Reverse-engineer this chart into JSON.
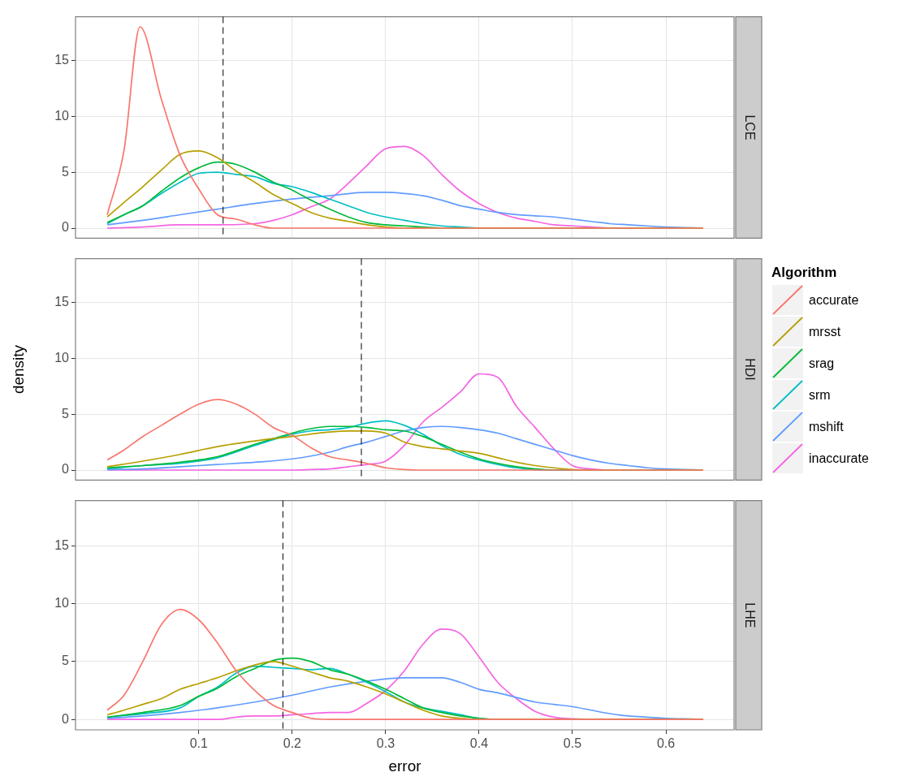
{
  "chart_data": [
    {
      "type": "line",
      "annotations": [
        "LCE"
      ],
      "xlim": [
        -0.032,
        0.673
      ],
      "ylim": [
        -0.9,
        18.9
      ],
      "xticks": [
        0.1,
        0.2,
        0.3,
        0.4,
        0.5,
        0.6
      ],
      "yticks": [
        0,
        5,
        10,
        15
      ],
      "grid": true,
      "tick_labels": "y",
      "legend": false,
      "ref_lines": [
        {
          "axis": "x",
          "value": 0.126,
          "color": "#000000",
          "line_style": "dashed"
        }
      ],
      "series": [
        {
          "color": "#f8766d",
          "x": [
            0.002,
            0.02,
            0.037,
            0.06,
            0.08,
            0.1,
            0.12,
            0.14,
            0.16,
            0.18,
            0.64
          ],
          "values": [
            1.2,
            7,
            18,
            11.5,
            6.5,
            3.5,
            1.2,
            0.8,
            0.3,
            0,
            0
          ]
        },
        {
          "color": "#b79f00",
          "x": [
            0.002,
            0.02,
            0.04,
            0.06,
            0.08,
            0.1,
            0.12,
            0.14,
            0.16,
            0.18,
            0.2,
            0.22,
            0.24,
            0.26,
            0.28,
            0.3,
            0.32,
            0.64
          ],
          "values": [
            1.0,
            2.3,
            3.7,
            5.2,
            6.6,
            6.9,
            6.3,
            5.1,
            4.1,
            3.0,
            2.2,
            1.4,
            0.9,
            0.6,
            0.3,
            0.1,
            0,
            0
          ]
        },
        {
          "color": "#00ba38",
          "x": [
            0.002,
            0.02,
            0.04,
            0.06,
            0.08,
            0.1,
            0.12,
            0.14,
            0.16,
            0.18,
            0.2,
            0.22,
            0.24,
            0.26,
            0.28,
            0.3,
            0.32,
            0.34,
            0.36,
            0.64
          ],
          "values": [
            0.5,
            1.2,
            2.0,
            3.3,
            4.5,
            5.4,
            5.9,
            5.7,
            5.0,
            4.1,
            3.4,
            2.5,
            1.7,
            1.0,
            0.5,
            0.3,
            0.2,
            0.1,
            0,
            0
          ]
        },
        {
          "color": "#00bfc4",
          "x": [
            0.002,
            0.02,
            0.04,
            0.06,
            0.08,
            0.1,
            0.12,
            0.14,
            0.16,
            0.18,
            0.2,
            0.22,
            0.24,
            0.26,
            0.28,
            0.3,
            0.32,
            0.34,
            0.36,
            0.38,
            0.4,
            0.64
          ],
          "values": [
            0.4,
            1.2,
            2.0,
            3.1,
            4.1,
            4.9,
            5.0,
            4.8,
            4.6,
            4.0,
            3.7,
            3.2,
            2.6,
            2.0,
            1.4,
            1.0,
            0.7,
            0.4,
            0.2,
            0.1,
            0,
            0
          ]
        },
        {
          "color": "#619cff",
          "x": [
            0.002,
            0.04,
            0.08,
            0.12,
            0.16,
            0.2,
            0.24,
            0.28,
            0.3,
            0.32,
            0.34,
            0.36,
            0.38,
            0.4,
            0.42,
            0.44,
            0.46,
            0.48,
            0.5,
            0.52,
            0.54,
            0.56,
            0.58,
            0.6,
            0.62,
            0.64
          ],
          "values": [
            0.3,
            0.7,
            1.2,
            1.7,
            2.2,
            2.6,
            2.9,
            3.2,
            3.2,
            3.1,
            2.9,
            2.5,
            2.0,
            1.7,
            1.4,
            1.2,
            1.1,
            1.0,
            0.8,
            0.6,
            0.4,
            0.3,
            0.2,
            0.1,
            0.05,
            0
          ]
        },
        {
          "color": "#f564e3",
          "x": [
            0.002,
            0.04,
            0.08,
            0.12,
            0.16,
            0.18,
            0.2,
            0.22,
            0.24,
            0.26,
            0.28,
            0.3,
            0.32,
            0.34,
            0.36,
            0.38,
            0.4,
            0.42,
            0.44,
            0.46,
            0.48,
            0.5,
            0.52,
            0.54,
            0.64
          ],
          "values": [
            0,
            0.1,
            0.3,
            0.3,
            0.4,
            0.7,
            1.2,
            1.9,
            2.6,
            4.0,
            5.6,
            7.1,
            7.3,
            6.5,
            4.8,
            3.3,
            2.2,
            1.4,
            0.9,
            0.6,
            0.3,
            0.2,
            0.1,
            0,
            0
          ]
        }
      ]
    },
    {
      "type": "line",
      "annotations": [
        "HDI"
      ],
      "ylabel": "density",
      "xlim": [
        -0.032,
        0.673
      ],
      "ylim": [
        -0.9,
        18.9
      ],
      "xticks": [
        0.1,
        0.2,
        0.3,
        0.4,
        0.5,
        0.6
      ],
      "yticks": [
        0,
        5,
        10,
        15
      ],
      "grid": true,
      "tick_labels": "y",
      "legend": "right",
      "legend_title": "Algorithm",
      "ref_lines": [
        {
          "axis": "x",
          "value": 0.274,
          "color": "#000000",
          "line_style": "dashed"
        }
      ],
      "series": [
        {
          "name": "accurate",
          "color": "#f8766d",
          "x": [
            0.002,
            0.02,
            0.04,
            0.06,
            0.08,
            0.1,
            0.12,
            0.14,
            0.16,
            0.18,
            0.2,
            0.22,
            0.24,
            0.26,
            0.28,
            0.3,
            0.32,
            0.34,
            0.64
          ],
          "values": [
            0.9,
            1.8,
            3.0,
            4.0,
            5.0,
            5.9,
            6.3,
            5.9,
            5.0,
            3.8,
            3.1,
            2.0,
            1.2,
            0.9,
            0.6,
            0.2,
            0.05,
            0,
            0
          ]
        },
        {
          "name": "mrsst",
          "color": "#b79f00",
          "x": [
            0.002,
            0.04,
            0.08,
            0.12,
            0.16,
            0.2,
            0.24,
            0.26,
            0.28,
            0.3,
            0.32,
            0.34,
            0.36,
            0.38,
            0.4,
            0.42,
            0.44,
            0.46,
            0.48,
            0.5,
            0.52,
            0.64
          ],
          "values": [
            0.3,
            0.8,
            1.4,
            2.1,
            2.6,
            3.0,
            3.4,
            3.5,
            3.5,
            3.3,
            2.5,
            2.1,
            1.9,
            1.7,
            1.5,
            1.1,
            0.7,
            0.4,
            0.2,
            0.05,
            0,
            0
          ]
        },
        {
          "name": "srag",
          "color": "#00ba38",
          "x": [
            0.002,
            0.04,
            0.08,
            0.12,
            0.16,
            0.2,
            0.22,
            0.24,
            0.26,
            0.28,
            0.3,
            0.32,
            0.34,
            0.36,
            0.38,
            0.4,
            0.42,
            0.44,
            0.46,
            0.48,
            0.64
          ],
          "values": [
            0.2,
            0.4,
            0.7,
            1.2,
            2.3,
            3.3,
            3.7,
            3.9,
            3.9,
            3.8,
            3.6,
            3.5,
            3.0,
            2.3,
            1.6,
            1.0,
            0.6,
            0.3,
            0.1,
            0,
            0
          ]
        },
        {
          "name": "srm",
          "color": "#00bfc4",
          "x": [
            0.002,
            0.04,
            0.08,
            0.12,
            0.16,
            0.2,
            0.22,
            0.24,
            0.26,
            0.28,
            0.3,
            0.32,
            0.34,
            0.36,
            0.38,
            0.4,
            0.42,
            0.44,
            0.46,
            0.48,
            0.64
          ],
          "values": [
            0.1,
            0.4,
            0.6,
            1.1,
            2.2,
            3.2,
            3.5,
            3.6,
            3.8,
            4.2,
            4.4,
            4.0,
            3.2,
            2.2,
            1.4,
            0.9,
            0.5,
            0.2,
            0.05,
            0,
            0
          ]
        },
        {
          "name": "mshift",
          "color": "#619cff",
          "x": [
            0.002,
            0.04,
            0.08,
            0.12,
            0.16,
            0.2,
            0.24,
            0.26,
            0.28,
            0.3,
            0.32,
            0.34,
            0.36,
            0.38,
            0.4,
            0.42,
            0.44,
            0.46,
            0.48,
            0.5,
            0.52,
            0.54,
            0.56,
            0.58,
            0.6,
            0.62,
            0.64
          ],
          "values": [
            0.05,
            0.1,
            0.3,
            0.5,
            0.7,
            1.0,
            1.6,
            2.1,
            2.5,
            3.0,
            3.5,
            3.8,
            3.9,
            3.8,
            3.6,
            3.3,
            2.8,
            2.3,
            1.8,
            1.3,
            0.9,
            0.6,
            0.4,
            0.2,
            0.1,
            0.05,
            0
          ]
        },
        {
          "name": "inaccurate",
          "color": "#f564e3",
          "x": [
            0.002,
            0.2,
            0.22,
            0.24,
            0.26,
            0.28,
            0.3,
            0.32,
            0.34,
            0.36,
            0.38,
            0.4,
            0.42,
            0.44,
            0.46,
            0.48,
            0.5,
            0.52,
            0.54,
            0.64
          ],
          "values": [
            0,
            0,
            0.05,
            0.1,
            0.3,
            0.5,
            0.8,
            2.2,
            4.3,
            5.6,
            7.0,
            8.6,
            8.3,
            5.7,
            3.8,
            1.9,
            0.4,
            0.1,
            0,
            0
          ]
        }
      ]
    },
    {
      "type": "line",
      "annotations": [
        "LHE"
      ],
      "xlabel": "error",
      "xlim": [
        -0.032,
        0.673
      ],
      "ylim": [
        -0.9,
        18.9
      ],
      "xticks": [
        0.1,
        0.2,
        0.3,
        0.4,
        0.5,
        0.6
      ],
      "yticks": [
        0,
        5,
        10,
        15
      ],
      "grid": true,
      "legend": false,
      "ref_lines": [
        {
          "axis": "x",
          "value": 0.19,
          "color": "#000000",
          "line_style": "dashed"
        }
      ],
      "series": [
        {
          "color": "#f8766d",
          "x": [
            0.002,
            0.02,
            0.04,
            0.06,
            0.08,
            0.1,
            0.12,
            0.14,
            0.16,
            0.18,
            0.2,
            0.22,
            0.24,
            0.64
          ],
          "values": [
            0.8,
            2.1,
            5.0,
            8.2,
            9.5,
            8.6,
            6.6,
            4.2,
            2.5,
            1.2,
            0.6,
            0.1,
            0,
            0
          ]
        },
        {
          "color": "#b79f00",
          "x": [
            0.002,
            0.02,
            0.04,
            0.06,
            0.08,
            0.1,
            0.12,
            0.14,
            0.16,
            0.18,
            0.2,
            0.22,
            0.24,
            0.26,
            0.28,
            0.3,
            0.32,
            0.34,
            0.36,
            0.38,
            0.4,
            0.64
          ],
          "values": [
            0.4,
            0.8,
            1.3,
            1.8,
            2.6,
            3.1,
            3.6,
            4.2,
            4.7,
            5.0,
            4.6,
            4.1,
            3.6,
            3.3,
            2.8,
            2.2,
            1.5,
            0.8,
            0.3,
            0.1,
            0,
            0
          ]
        },
        {
          "color": "#00ba38",
          "x": [
            0.002,
            0.04,
            0.08,
            0.1,
            0.12,
            0.14,
            0.16,
            0.18,
            0.2,
            0.22,
            0.24,
            0.26,
            0.28,
            0.3,
            0.32,
            0.34,
            0.36,
            0.38,
            0.4,
            0.42,
            0.64
          ],
          "values": [
            0.2,
            0.6,
            1.2,
            2.0,
            2.7,
            3.7,
            4.4,
            5.1,
            5.3,
            5.0,
            4.3,
            3.9,
            3.3,
            2.6,
            1.8,
            1.0,
            0.6,
            0.3,
            0.1,
            0,
            0
          ]
        },
        {
          "color": "#00bfc4",
          "x": [
            0.002,
            0.04,
            0.08,
            0.1,
            0.12,
            0.14,
            0.16,
            0.18,
            0.2,
            0.22,
            0.24,
            0.26,
            0.28,
            0.3,
            0.32,
            0.34,
            0.36,
            0.38,
            0.4,
            0.42,
            0.64
          ],
          "values": [
            0.2,
            0.5,
            1.0,
            2.0,
            2.8,
            4.0,
            4.6,
            4.5,
            4.4,
            4.3,
            4.4,
            3.9,
            3.2,
            2.4,
            1.5,
            1.0,
            0.7,
            0.4,
            0.1,
            0,
            0
          ]
        },
        {
          "color": "#619cff",
          "x": [
            0.002,
            0.04,
            0.08,
            0.12,
            0.16,
            0.2,
            0.24,
            0.28,
            0.32,
            0.34,
            0.36,
            0.38,
            0.4,
            0.42,
            0.44,
            0.46,
            0.48,
            0.5,
            0.52,
            0.54,
            0.56,
            0.58,
            0.6,
            0.62,
            0.64
          ],
          "values": [
            0.1,
            0.3,
            0.6,
            1.0,
            1.5,
            2.1,
            2.8,
            3.3,
            3.6,
            3.6,
            3.6,
            3.2,
            2.6,
            2.3,
            1.9,
            1.5,
            1.3,
            1.1,
            0.8,
            0.5,
            0.3,
            0.2,
            0.1,
            0.05,
            0
          ]
        },
        {
          "color": "#f564e3",
          "x": [
            0.002,
            0.12,
            0.14,
            0.16,
            0.18,
            0.2,
            0.22,
            0.24,
            0.26,
            0.28,
            0.3,
            0.32,
            0.34,
            0.36,
            0.38,
            0.4,
            0.42,
            0.44,
            0.46,
            0.48,
            0.5,
            0.52,
            0.64
          ],
          "values": [
            0,
            0,
            0.2,
            0.3,
            0.3,
            0.4,
            0.5,
            0.6,
            0.6,
            1.4,
            2.5,
            4.2,
            6.5,
            7.8,
            7.4,
            5.4,
            3.2,
            1.8,
            0.7,
            0.2,
            0.05,
            0,
            0
          ]
        }
      ]
    }
  ]
}
